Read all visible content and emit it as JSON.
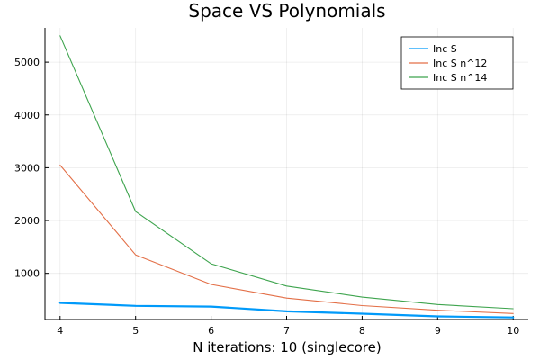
{
  "chart_data": {
    "type": "line",
    "title": "Space VS Polynomials",
    "xlabel": "N iterations: 10 (singlecore)",
    "ylabel": "",
    "x": [
      4,
      5,
      6,
      7,
      8,
      9,
      10
    ],
    "xlim": [
      3.8,
      10.2
    ],
    "ylim": [
      125,
      5650
    ],
    "xticks": [
      4,
      5,
      6,
      7,
      8,
      9,
      10
    ],
    "yticks": [
      1000,
      2000,
      3000,
      4000,
      5000
    ],
    "grid": true,
    "legend_position": "top-right",
    "series": [
      {
        "name": "Inc S",
        "color": "#009AFA",
        "width": 2.2,
        "values": [
          440,
          385,
          370,
          280,
          235,
          185,
          165
        ]
      },
      {
        "name": "Inc S n^12",
        "color": "#E36F47",
        "width": 1.1,
        "values": [
          3050,
          1350,
          790,
          530,
          390,
          300,
          240
        ]
      },
      {
        "name": "Inc S n^14",
        "color": "#3EA44E",
        "width": 1.1,
        "values": [
          5500,
          2170,
          1180,
          760,
          550,
          410,
          330
        ]
      }
    ]
  }
}
